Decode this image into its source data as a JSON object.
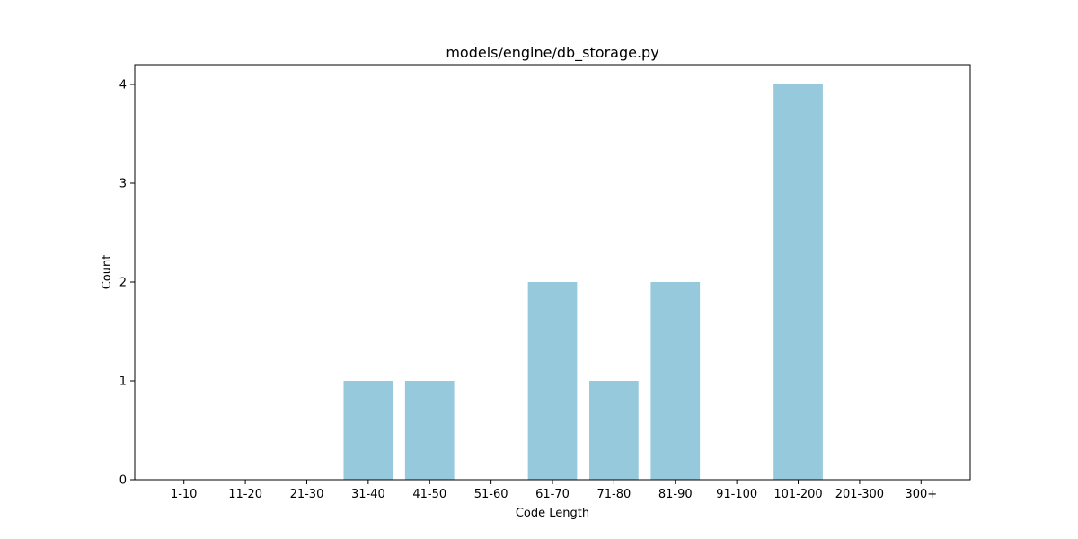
{
  "chart_data": {
    "type": "bar",
    "title": "models/engine/db_storage.py",
    "xlabel": "Code Length",
    "ylabel": "Count",
    "categories": [
      "1-10",
      "11-20",
      "21-30",
      "31-40",
      "41-50",
      "51-60",
      "61-70",
      "71-80",
      "81-90",
      "91-100",
      "101-200",
      "201-300",
      "300+"
    ],
    "values": [
      0,
      0,
      0,
      1,
      1,
      0,
      2,
      1,
      2,
      0,
      4,
      0,
      0
    ],
    "yticks": [
      "0",
      "1",
      "2",
      "3",
      "4"
    ],
    "ylim": [
      0,
      4.2
    ],
    "grid": false,
    "bar_color": "#96c9dc"
  }
}
